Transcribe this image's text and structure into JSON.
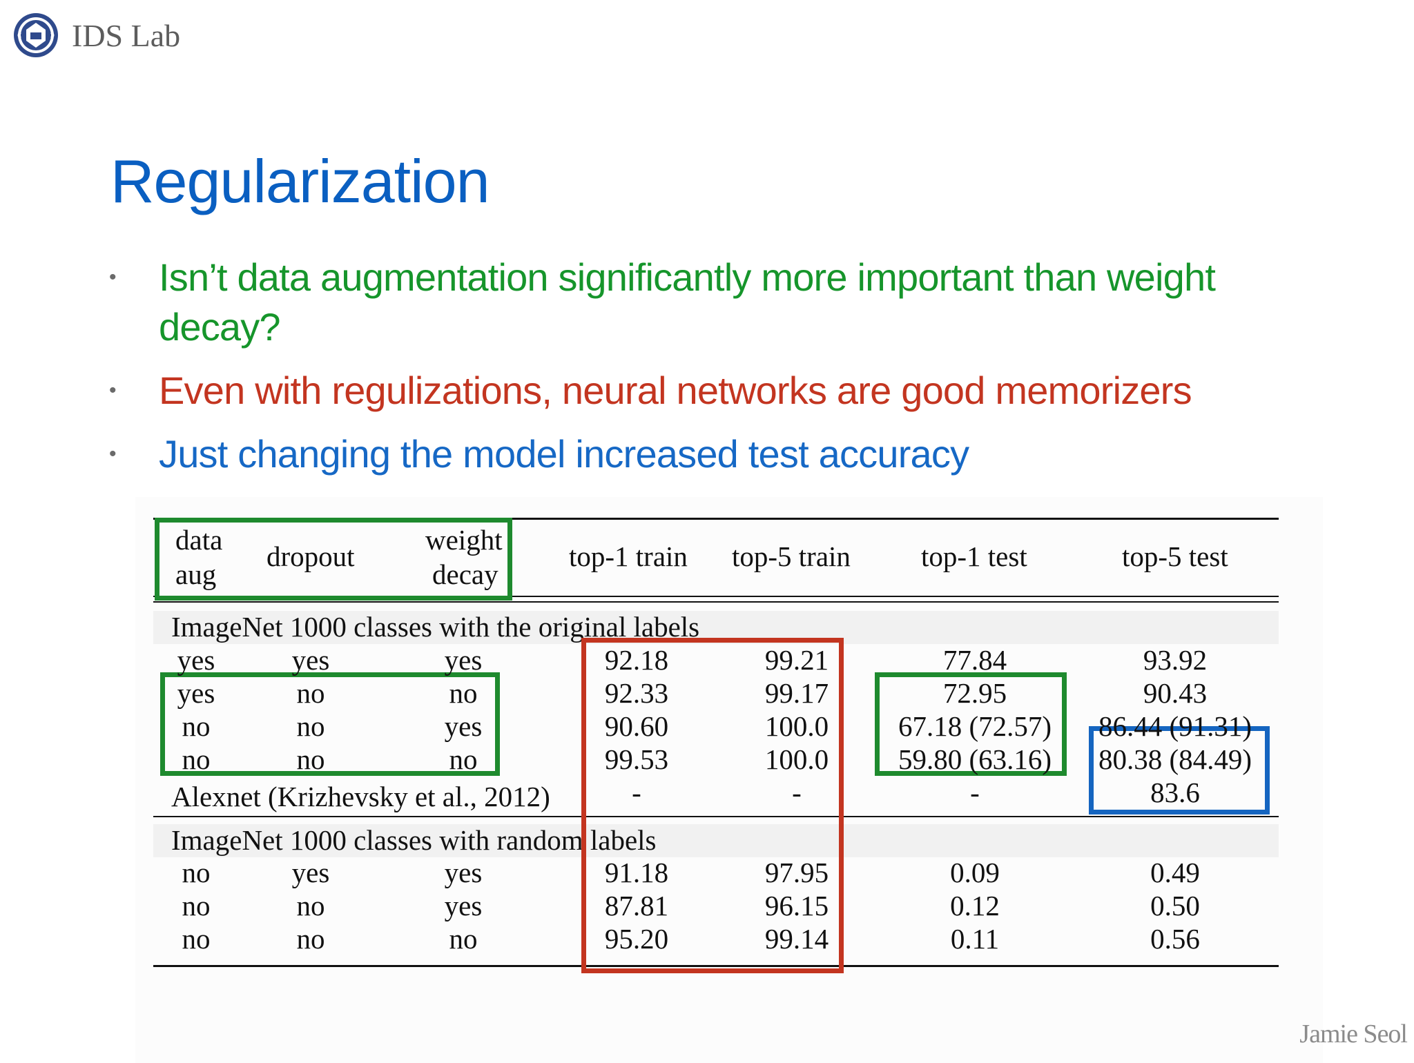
{
  "header": {
    "lab_name": "IDS Lab",
    "logo_icon": "university-emblem-icon"
  },
  "slide": {
    "title": "Regularization",
    "bullets": [
      {
        "text": "Isn’t data augmentation significantly more important than weight decay?",
        "color": "#16952b"
      },
      {
        "text": "Even with regulizations, neural networks are good memorizers",
        "color": "#c33520"
      },
      {
        "text": "Just changing the model increased test accuracy",
        "color": "#1668c5"
      }
    ]
  },
  "table": {
    "headers": {
      "data_aug_1": "data",
      "data_aug_2": "aug",
      "dropout": "dropout",
      "weight_decay_1": "weight",
      "weight_decay_2": "decay",
      "top1_train": "top-1 train",
      "top5_train": "top-5 train",
      "top1_test": "top-1 test",
      "top5_test": "top-5 test"
    },
    "sections": [
      {
        "label": "ImageNet 1000 classes with the original labels",
        "rows": [
          [
            "yes",
            "yes",
            "yes",
            "92.18",
            "99.21",
            "77.84",
            "93.92"
          ],
          [
            "yes",
            "no",
            "no",
            "92.33",
            "99.17",
            "72.95",
            "90.43"
          ],
          [
            "no",
            "no",
            "yes",
            "90.60",
            "100.0",
            "67.18 (72.57)",
            "86.44 (91.31)"
          ],
          [
            "no",
            "no",
            "no",
            "99.53",
            "100.0",
            "59.80 (63.16)",
            "80.38 (84.49)"
          ]
        ],
        "extra_row": [
          "Alexnet (Krizhevsky et al., 2012)",
          "-",
          "-",
          "-",
          "83.6"
        ]
      },
      {
        "label": "ImageNet 1000 classes with random labels",
        "rows": [
          [
            "no",
            "yes",
            "yes",
            "91.18",
            "97.95",
            "0.09",
            "0.49"
          ],
          [
            "no",
            "no",
            "yes",
            "87.81",
            "96.15",
            "0.12",
            "0.50"
          ],
          [
            "no",
            "no",
            "no",
            "95.20",
            "99.14",
            "0.11",
            "0.56"
          ]
        ]
      }
    ],
    "highlight_colors": {
      "green": "#1e8a2e",
      "red": "#c33520",
      "blue": "#1565c0"
    }
  },
  "footer": {
    "author": "Jamie Seol"
  }
}
